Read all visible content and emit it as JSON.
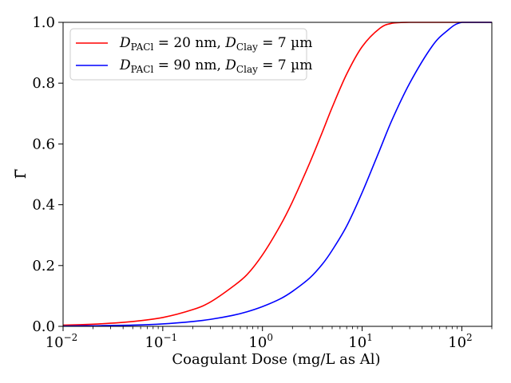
{
  "chart_data": {
    "type": "line",
    "xlabel": "Coagulant Dose (mg/L as Al)",
    "ylabel": "Γ̅",
    "x_scale": "log",
    "xlim": [
      0.01,
      200
    ],
    "ylim": [
      0,
      1
    ],
    "x_ticks": [
      {
        "value": 0.01,
        "base": "10",
        "exp": "−2"
      },
      {
        "value": 0.1,
        "base": "10",
        "exp": "−1"
      },
      {
        "value": 1,
        "base": "10",
        "exp": "0"
      },
      {
        "value": 10,
        "base": "10",
        "exp": "1"
      },
      {
        "value": 100,
        "base": "10",
        "exp": "2"
      }
    ],
    "y_ticks": [
      "0.0",
      "0.2",
      "0.4",
      "0.6",
      "0.8",
      "1.0"
    ],
    "grid": false,
    "legend_position": "top-left",
    "series": [
      {
        "name": "D_PACl = 20 nm, D_Clay = 7 µm",
        "legend": {
          "d1": "D",
          "s1": "PACl",
          "t1": " = 20 nm, ",
          "d2": "D",
          "s2": "Clay",
          "t2": " = 7 µm"
        },
        "color": "#ff0000",
        "x": [
          0.01,
          0.02,
          0.05,
          0.1,
          0.2,
          0.3,
          0.5,
          0.7,
          1,
          1.5,
          2,
          3,
          4,
          5,
          7,
          10,
          15,
          20,
          30,
          50,
          100,
          200
        ],
        "y": [
          0.004,
          0.007,
          0.016,
          0.029,
          0.055,
          0.08,
          0.13,
          0.17,
          0.235,
          0.33,
          0.41,
          0.54,
          0.64,
          0.72,
          0.83,
          0.92,
          0.98,
          0.997,
          1.0,
          1.0,
          1.0,
          1.0
        ]
      },
      {
        "name": "D_PACl = 90 nm, D_Clay = 7 µm",
        "legend": {
          "d1": "D",
          "s1": "PACl",
          "t1": " = 90 nm, ",
          "d2": "D",
          "s2": "Clay",
          "t2": " = 7 µm"
        },
        "color": "#0000ff",
        "x": [
          0.01,
          0.02,
          0.05,
          0.1,
          0.2,
          0.3,
          0.5,
          0.7,
          1,
          1.5,
          2,
          3,
          4,
          5,
          7,
          10,
          15,
          20,
          30,
          50,
          70,
          100,
          200
        ],
        "y": [
          0.001,
          0.002,
          0.004,
          0.008,
          0.016,
          0.023,
          0.036,
          0.048,
          0.065,
          0.09,
          0.115,
          0.16,
          0.205,
          0.25,
          0.33,
          0.44,
          0.58,
          0.68,
          0.8,
          0.92,
          0.97,
          1.0,
          1.0
        ]
      }
    ]
  }
}
